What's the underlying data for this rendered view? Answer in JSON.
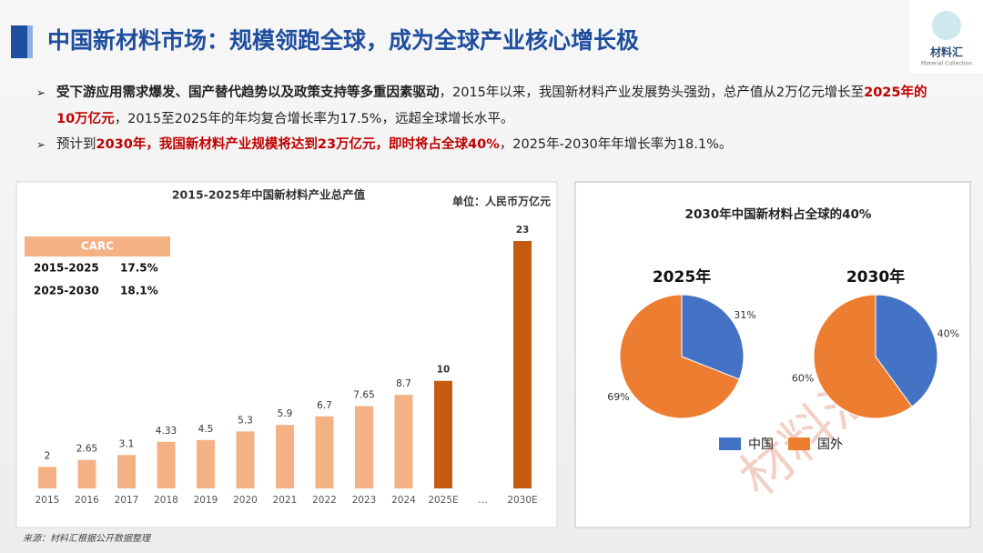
{
  "title": "中国新材料市场：规模领跑全球，成为全球产业核心增长极",
  "logo": {
    "name": "材料汇",
    "subtitle": "Material Collection"
  },
  "bullets": [
    [
      {
        "text": "受下游应用需求爆发、国产替代趋势以及政策支持等多重因素驱动",
        "bold": true
      },
      {
        "text": "，2015年以来，我国新材料产业发展势头强劲，总产值从2万亿元增长至"
      },
      {
        "text": "2025年的10万亿元",
        "bold": true,
        "color": "#c00000"
      },
      {
        "text": "，2015至2025年的年均复合增长率为17.5%，远超全球增长水平。"
      }
    ],
    [
      {
        "text": "预计到"
      },
      {
        "text": "2030年，我国新材料产业规模将达到23万亿元，即时将占全球40%",
        "bold": true,
        "color": "#c00000"
      },
      {
        "text": "，2025年-2030年年增长率为18.1%。"
      }
    ]
  ],
  "pie_panel_title": "2030年中国新材料占全球的40%",
  "watermark": "材料汇",
  "source": "来源：材料汇根据公开数据整理",
  "chart_data": [
    {
      "type": "bar",
      "title": "2015-2025年中国新材料产业总产值",
      "unit": "单位：人民币万亿元",
      "categories": [
        "2015",
        "2016",
        "2017",
        "2018",
        "2019",
        "2020",
        "2021",
        "2022",
        "2023",
        "2024",
        "2025E",
        "…",
        "2030E"
      ],
      "values": [
        2,
        2.65,
        3.1,
        4.33,
        4.5,
        5.3,
        5.9,
        6.7,
        7.65,
        8.7,
        10,
        null,
        23
      ],
      "colors": [
        "#f4b183",
        "#f4b183",
        "#f4b183",
        "#f4b183",
        "#f4b183",
        "#f4b183",
        "#f4b183",
        "#f4b183",
        "#f4b183",
        "#f4b183",
        "#c55a11",
        "#c55a11",
        "#c55a11"
      ],
      "table": {
        "header": "CARC",
        "rows": [
          [
            "2015-2025",
            "17.5%"
          ],
          [
            "2025-2030",
            "18.1%"
          ]
        ]
      }
    },
    {
      "type": "pie",
      "title": "2025年",
      "categories": [
        "中国",
        "国外"
      ],
      "values": [
        31,
        69
      ],
      "value_labels": [
        "31%",
        "69%"
      ],
      "colors": [
        "#4472c4",
        "#ed7d31"
      ]
    },
    {
      "type": "pie",
      "title": "2030年",
      "categories": [
        "中国",
        "国外"
      ],
      "values": [
        40,
        60
      ],
      "value_labels": [
        "40%",
        "60%"
      ],
      "colors": [
        "#4472c4",
        "#ed7d31"
      ]
    }
  ]
}
